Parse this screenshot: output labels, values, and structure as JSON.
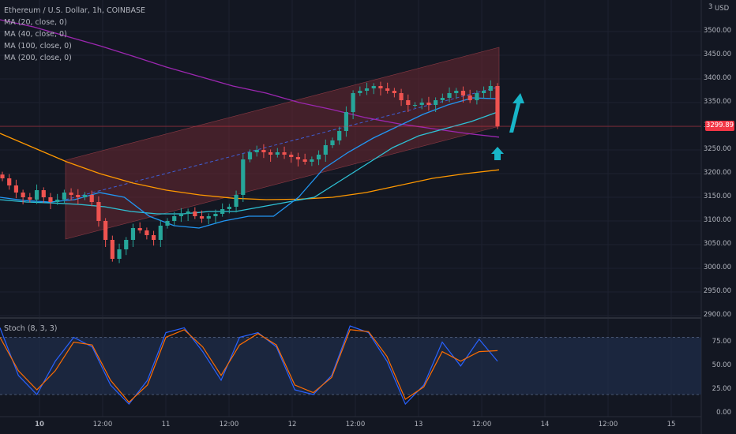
{
  "header": {
    "symbol_line": "Ethereum / U.S. Dollar, 1h, COINBASE",
    "ma_labels": [
      "MA (20, close, 0)",
      "MA (40, close, 0)",
      "MA (100, close, 0)",
      "MA (200, close, 0)"
    ],
    "currency": "USD",
    "top_tick_fragment": "3"
  },
  "oscillator": {
    "label": "Stoch (8, 3, 3)",
    "ticks": [
      "75.00",
      "50.00",
      "25.00",
      "0.00"
    ]
  },
  "price_axis": {
    "ticks": [
      "3500.00",
      "3450.00",
      "3400.00",
      "3350.00",
      "3300.00",
      "3250.00",
      "3200.00",
      "3150.00",
      "3100.00",
      "3050.00",
      "3000.00",
      "2950.00",
      "2900.00"
    ],
    "last_price": "3299.89"
  },
  "time_axis": {
    "ticks": [
      "10",
      "12:00",
      "11",
      "12:00",
      "12",
      "12:00",
      "13",
      "12:00",
      "14",
      "12:00",
      "15"
    ]
  },
  "colors": {
    "background": "#131722",
    "up": "#26a69a",
    "down": "#ef5350",
    "channel": "#6b2832",
    "ma20": "#2196f3",
    "ma40": "#2ec2d6",
    "ma100": "#9c27b0",
    "ma200": "#ff9800",
    "arrow": "#18b5c8"
  },
  "chart_data": {
    "type": "line",
    "price_range": [
      2900,
      3500
    ],
    "last_price": 3299.89,
    "series": [
      {
        "name": "MA (20, close, 0)",
        "values": [
          3150,
          3143,
          3140,
          3145,
          3160,
          3150,
          3110,
          3090,
          3085,
          3100,
          3110,
          3110,
          3150,
          3210,
          3245,
          3275,
          3300,
          3325,
          3345,
          3360,
          3358
        ]
      },
      {
        "name": "MA (40, close, 0)",
        "values": [
          3145,
          3140,
          3138,
          3135,
          3130,
          3120,
          3115,
          3115,
          3120,
          3120,
          3130,
          3140,
          3150,
          3185,
          3220,
          3255,
          3280,
          3295,
          3310,
          3330
        ]
      },
      {
        "name": "MA (100, close, 0)",
        "values": [
          3525,
          3510,
          3490,
          3470,
          3448,
          3425,
          3405,
          3385,
          3370,
          3350,
          3335,
          3318,
          3305,
          3295,
          3285,
          3277
        ]
      },
      {
        "name": "MA (200, close, 0)",
        "values": [
          3285,
          3255,
          3225,
          3200,
          3180,
          3165,
          3155,
          3148,
          3145,
          3146,
          3150,
          3160,
          3175,
          3190,
          3200,
          3208
        ]
      }
    ],
    "stochastic": {
      "levels": [
        80,
        20
      ],
      "k": [
        90,
        40,
        20,
        55,
        80,
        70,
        30,
        10,
        35,
        85,
        90,
        65,
        35,
        80,
        85,
        70,
        25,
        20,
        40,
        92,
        85,
        55,
        10,
        30,
        75,
        50,
        78,
        55
      ],
      "d": [
        80,
        45,
        25,
        45,
        75,
        72,
        35,
        12,
        30,
        80,
        88,
        70,
        40,
        72,
        84,
        72,
        30,
        22,
        38,
        88,
        86,
        60,
        15,
        28,
        65,
        55,
        65,
        66
      ]
    }
  }
}
